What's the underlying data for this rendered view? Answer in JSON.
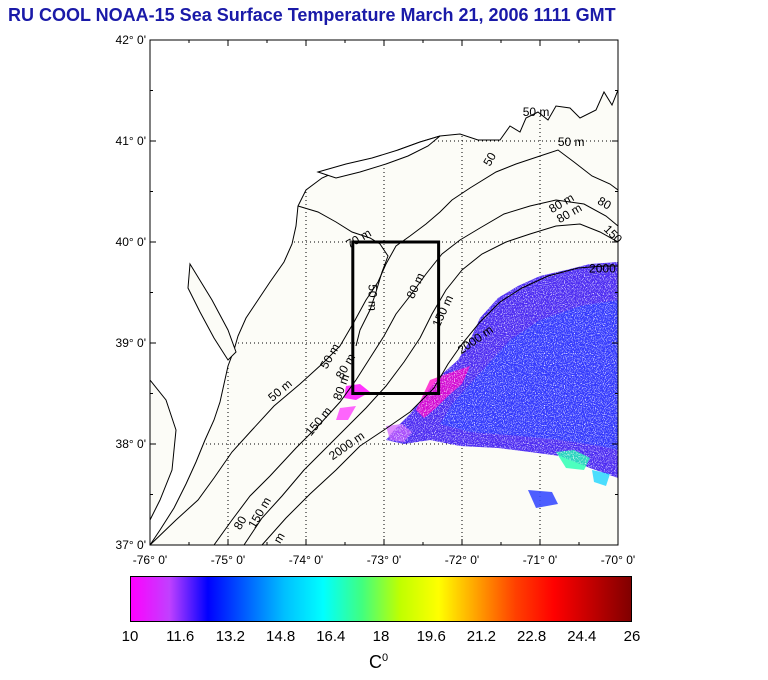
{
  "title": "RU COOL  NOAA-15 Sea Surface Temperature March 21, 2006 1111 GMT",
  "map": {
    "lon_range": [
      -76,
      -70
    ],
    "lat_range": [
      37,
      42
    ],
    "lon_ticks": [
      "-76° 0'",
      "-75° 0'",
      "-74° 0'",
      "-73° 0'",
      "-72° 0'",
      "-71° 0'",
      "-70° 0'"
    ],
    "lat_ticks": [
      "42° 0'",
      "41° 0'",
      "40° 0'",
      "39° 0'",
      "38° 0'",
      "37° 0'"
    ],
    "study_box": {
      "lon": [
        -73.4,
        -72.3
      ],
      "lat": [
        38.5,
        40.0
      ]
    },
    "contour_labels": [
      {
        "text": "50 m",
        "lon": -71.05,
        "lat": 41.25,
        "rot": 0
      },
      {
        "text": "50 m",
        "lon": -70.6,
        "lat": 40.95,
        "rot": 0
      },
      {
        "text": "50",
        "lon": -71.6,
        "lat": 40.8,
        "rot": -60
      },
      {
        "text": "80 m",
        "lon": -70.7,
        "lat": 40.35,
        "rot": -30
      },
      {
        "text": "80 m",
        "lon": -70.6,
        "lat": 40.25,
        "rot": -30
      },
      {
        "text": "80",
        "lon": -70.2,
        "lat": 40.35,
        "rot": 30
      },
      {
        "text": "150",
        "lon": -70.1,
        "lat": 40.05,
        "rot": 45
      },
      {
        "text": "2000",
        "lon": -70.2,
        "lat": 39.7,
        "rot": 0
      },
      {
        "text": "70 m",
        "lon": -73.3,
        "lat": 40.0,
        "rot": -30
      },
      {
        "text": "50 m",
        "lon": -73.2,
        "lat": 39.45,
        "rot": 90
      },
      {
        "text": "80 m",
        "lon": -72.55,
        "lat": 39.55,
        "rot": -65
      },
      {
        "text": "150 m",
        "lon": -72.2,
        "lat": 39.3,
        "rot": -65
      },
      {
        "text": "2000 m",
        "lon": -71.8,
        "lat": 39.0,
        "rot": -35
      },
      {
        "text": "50 m",
        "lon": -73.65,
        "lat": 38.85,
        "rot": -60
      },
      {
        "text": "50 m",
        "lon": -74.3,
        "lat": 38.5,
        "rot": -40
      },
      {
        "text": "80 m",
        "lon": -73.45,
        "lat": 38.75,
        "rot": -60
      },
      {
        "text": "80 m",
        "lon": -73.5,
        "lat": 38.55,
        "rot": -70
      },
      {
        "text": "150 m",
        "lon": -73.8,
        "lat": 38.2,
        "rot": -50
      },
      {
        "text": "2000 m",
        "lon": -73.45,
        "lat": 37.95,
        "rot": -35
      },
      {
        "text": "80",
        "lon": -74.8,
        "lat": 37.2,
        "rot": -60
      },
      {
        "text": "150 m",
        "lon": -74.55,
        "lat": 37.3,
        "rot": -60
      },
      {
        "text": "m",
        "lon": -74.3,
        "lat": 37.05,
        "rot": -60
      }
    ]
  },
  "colorbar": {
    "ticks": [
      "10",
      "11.6",
      "13.2",
      "14.8",
      "16.4",
      "18",
      "19.6",
      "21.2",
      "22.8",
      "24.4",
      "26"
    ],
    "range": [
      10,
      26
    ],
    "unit": "C",
    "unit_superscript": "0",
    "colors": [
      "#ff00ff",
      "#c040ff",
      "#0000ff",
      "#0060ff",
      "#00c0ff",
      "#00ffff",
      "#40ff80",
      "#c0ff00",
      "#ffff00",
      "#ffa000",
      "#ff4000",
      "#ff0000",
      "#c00000",
      "#800000"
    ]
  }
}
